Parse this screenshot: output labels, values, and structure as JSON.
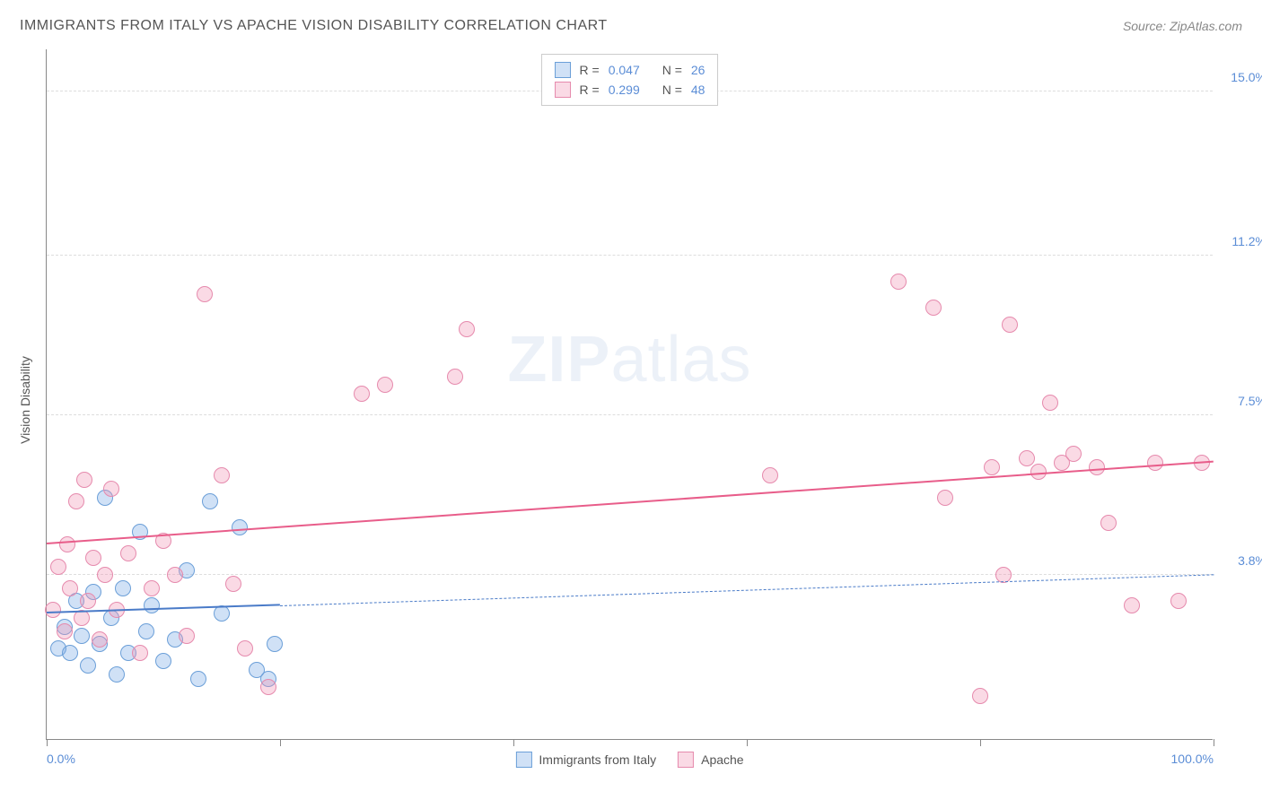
{
  "title": "IMMIGRANTS FROM ITALY VS APACHE VISION DISABILITY CORRELATION CHART",
  "source_label": "Source: ",
  "source_name": "ZipAtlas.com",
  "watermark_a": "ZIP",
  "watermark_b": "atlas",
  "ylabel": "Vision Disability",
  "chart": {
    "type": "scatter",
    "xlim": [
      0,
      100
    ],
    "ylim": [
      0,
      16
    ],
    "x_ticks": [
      0,
      20,
      40,
      60,
      80,
      100
    ],
    "x_tick_labels_visible": {
      "0": "0.0%",
      "100": "100.0%"
    },
    "y_gridlines": [
      3.8,
      7.5,
      11.2,
      15.0
    ],
    "y_tick_labels": [
      "3.8%",
      "7.5%",
      "11.2%",
      "15.0%"
    ],
    "background_color": "#ffffff",
    "grid_color": "#dddddd",
    "axis_color": "#888888",
    "tick_label_color": "#5b8dd6",
    "series": [
      {
        "name": "Immigrants from Italy",
        "fill": "rgba(120, 170, 230, 0.35)",
        "stroke": "#6b9fd8",
        "marker_radius": 9,
        "R": "0.047",
        "N": "26",
        "trend": {
          "x1": 0,
          "y1": 2.9,
          "x2": 100,
          "y2": 3.8,
          "solid_until_x": 20,
          "color": "#4a7bc8",
          "width": 2.5
        },
        "points": [
          [
            1.0,
            2.1
          ],
          [
            1.5,
            2.6
          ],
          [
            2.0,
            2.0
          ],
          [
            2.5,
            3.2
          ],
          [
            3.0,
            2.4
          ],
          [
            3.5,
            1.7
          ],
          [
            4.0,
            3.4
          ],
          [
            4.5,
            2.2
          ],
          [
            5.0,
            5.6
          ],
          [
            5.5,
            2.8
          ],
          [
            6.0,
            1.5
          ],
          [
            6.5,
            3.5
          ],
          [
            7.0,
            2.0
          ],
          [
            8.0,
            4.8
          ],
          [
            8.5,
            2.5
          ],
          [
            9.0,
            3.1
          ],
          [
            10.0,
            1.8
          ],
          [
            11.0,
            2.3
          ],
          [
            12.0,
            3.9
          ],
          [
            13.0,
            1.4
          ],
          [
            14.0,
            5.5
          ],
          [
            15.0,
            2.9
          ],
          [
            16.5,
            4.9
          ],
          [
            18.0,
            1.6
          ],
          [
            19.0,
            1.4
          ],
          [
            19.5,
            2.2
          ]
        ]
      },
      {
        "name": "Apache",
        "fill": "rgba(240, 150, 180, 0.35)",
        "stroke": "#e68aad",
        "marker_radius": 9,
        "R": "0.299",
        "N": "48",
        "trend": {
          "x1": 0,
          "y1": 4.5,
          "x2": 100,
          "y2": 6.4,
          "solid_until_x": 100,
          "color": "#e85d8a",
          "width": 2.5
        },
        "points": [
          [
            0.5,
            3.0
          ],
          [
            1.0,
            4.0
          ],
          [
            1.5,
            2.5
          ],
          [
            1.8,
            4.5
          ],
          [
            2.0,
            3.5
          ],
          [
            2.5,
            5.5
          ],
          [
            3.0,
            2.8
          ],
          [
            3.2,
            6.0
          ],
          [
            3.5,
            3.2
          ],
          [
            4.0,
            4.2
          ],
          [
            4.5,
            2.3
          ],
          [
            5.0,
            3.8
          ],
          [
            5.5,
            5.8
          ],
          [
            6.0,
            3.0
          ],
          [
            7.0,
            4.3
          ],
          [
            8.0,
            2.0
          ],
          [
            9.0,
            3.5
          ],
          [
            10.0,
            4.6
          ],
          [
            11.0,
            3.8
          ],
          [
            12.0,
            2.4
          ],
          [
            13.5,
            10.3
          ],
          [
            15.0,
            6.1
          ],
          [
            16.0,
            3.6
          ],
          [
            17.0,
            2.1
          ],
          [
            19.0,
            1.2
          ],
          [
            27.0,
            8.0
          ],
          [
            29.0,
            8.2
          ],
          [
            35.0,
            8.4
          ],
          [
            36.0,
            9.5
          ],
          [
            62.0,
            6.1
          ],
          [
            73.0,
            10.6
          ],
          [
            76.0,
            10.0
          ],
          [
            77.0,
            5.6
          ],
          [
            80.0,
            1.0
          ],
          [
            81.0,
            6.3
          ],
          [
            82.0,
            3.8
          ],
          [
            82.5,
            9.6
          ],
          [
            84.0,
            6.5
          ],
          [
            85.0,
            6.2
          ],
          [
            86.0,
            7.8
          ],
          [
            87.0,
            6.4
          ],
          [
            88.0,
            6.6
          ],
          [
            90.0,
            6.3
          ],
          [
            91.0,
            5.0
          ],
          [
            93.0,
            3.1
          ],
          [
            95.0,
            6.4
          ],
          [
            97.0,
            3.2
          ],
          [
            99.0,
            6.4
          ]
        ]
      }
    ]
  },
  "legend_stats_label_R": "R =",
  "legend_stats_label_N": "N ="
}
